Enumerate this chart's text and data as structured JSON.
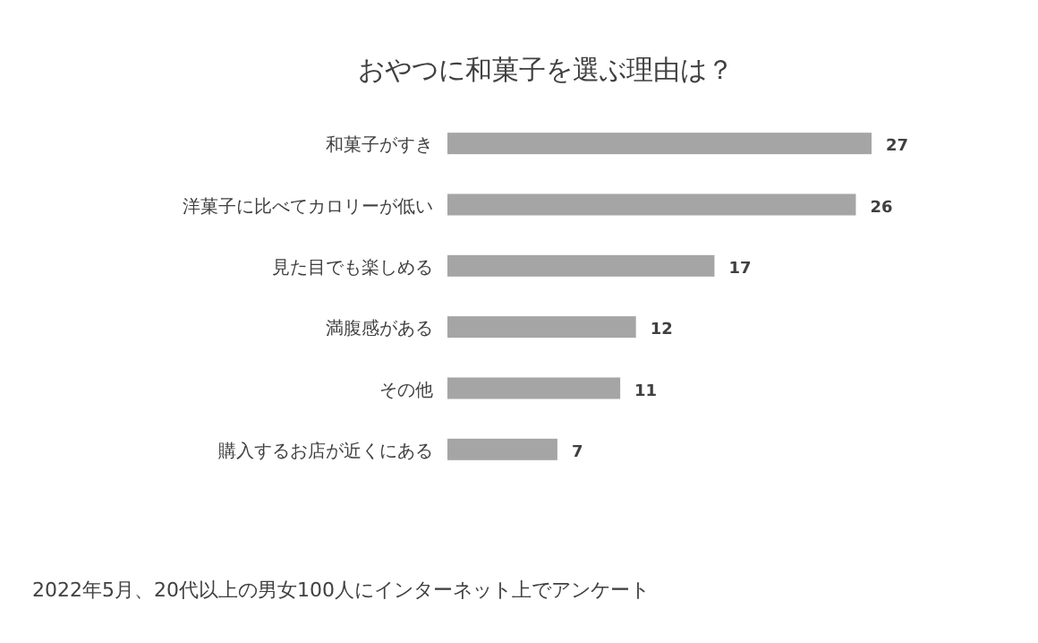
{
  "chart_data": {
    "type": "bar",
    "orientation": "horizontal",
    "title": "おやつに和菓子を選ぶ理由は？",
    "categories": [
      "和菓子がすき",
      "洋菓子に比べてカロリーが低い",
      "見た目でも楽しめる",
      "満腹感がある",
      "その他",
      "購入するお店が近くにある"
    ],
    "values": [
      27,
      26,
      17,
      12,
      11,
      7
    ],
    "color": "#a5a5a5",
    "data_labels": true,
    "annotations": [
      "2022年5月、20代以上の男女100人にインターネット上でアンケート"
    ]
  }
}
